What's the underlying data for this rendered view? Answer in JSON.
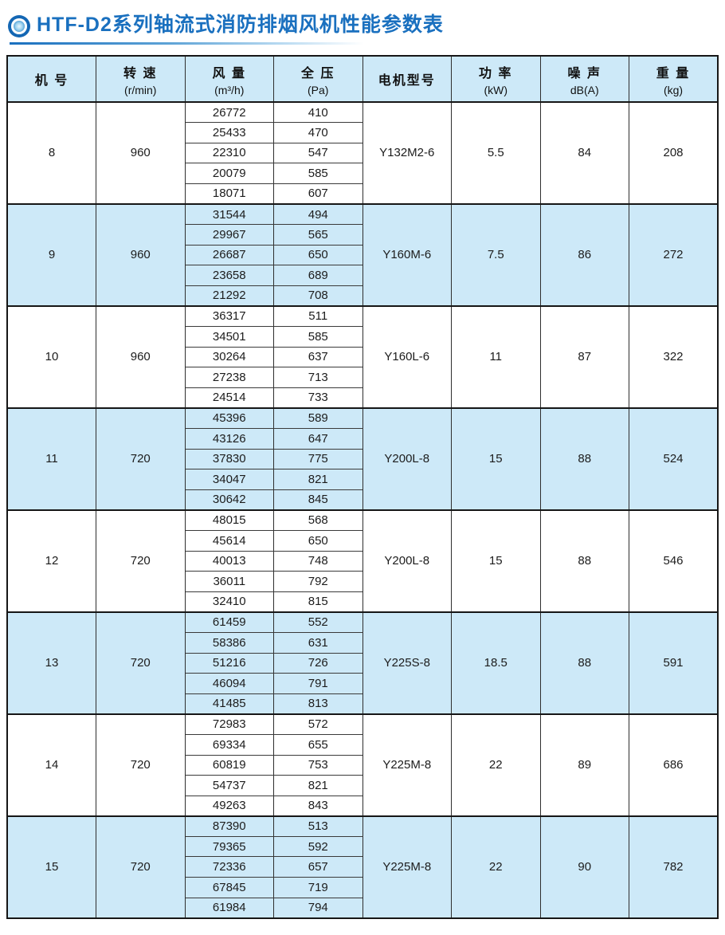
{
  "page": {
    "title": "HTF-D2系列轴流式消防排烟风机性能参数表"
  },
  "colors": {
    "accent": "#1a70bf",
    "row_shade": "#cde9f8",
    "border_dark": "#161616"
  },
  "table": {
    "columns": [
      {
        "label": "机 号",
        "unit": ""
      },
      {
        "label": "转 速",
        "unit": "(r/min)"
      },
      {
        "label": "风 量",
        "unit": "(m³/h)"
      },
      {
        "label": "全 压",
        "unit": "(Pa)"
      },
      {
        "label": "电机型号",
        "unit": ""
      },
      {
        "label": "功 率",
        "unit": "(kW)"
      },
      {
        "label": "噪 声",
        "unit": "dB(A)"
      },
      {
        "label": "重 量",
        "unit": "(kg)"
      }
    ],
    "groups": [
      {
        "model_no": "8",
        "speed": "960",
        "motor": "Y132M2-6",
        "power": "5.5",
        "noise": "84",
        "weight": "208",
        "shaded": false,
        "points": [
          [
            26772,
            410
          ],
          [
            25433,
            470
          ],
          [
            22310,
            547
          ],
          [
            20079,
            585
          ],
          [
            18071,
            607
          ]
        ]
      },
      {
        "model_no": "9",
        "speed": "960",
        "motor": "Y160M-6",
        "power": "7.5",
        "noise": "86",
        "weight": "272",
        "shaded": true,
        "points": [
          [
            31544,
            494
          ],
          [
            29967,
            565
          ],
          [
            26687,
            650
          ],
          [
            23658,
            689
          ],
          [
            21292,
            708
          ]
        ]
      },
      {
        "model_no": "10",
        "speed": "960",
        "motor": "Y160L-6",
        "power": "11",
        "noise": "87",
        "weight": "322",
        "shaded": false,
        "points": [
          [
            36317,
            511
          ],
          [
            34501,
            585
          ],
          [
            30264,
            637
          ],
          [
            27238,
            713
          ],
          [
            24514,
            733
          ]
        ]
      },
      {
        "model_no": "11",
        "speed": "720",
        "motor": "Y200L-8",
        "power": "15",
        "noise": "88",
        "weight": "524",
        "shaded": true,
        "points": [
          [
            45396,
            589
          ],
          [
            43126,
            647
          ],
          [
            37830,
            775
          ],
          [
            34047,
            821
          ],
          [
            30642,
            845
          ]
        ]
      },
      {
        "model_no": "12",
        "speed": "720",
        "motor": "Y200L-8",
        "power": "15",
        "noise": "88",
        "weight": "546",
        "shaded": false,
        "points": [
          [
            48015,
            568
          ],
          [
            45614,
            650
          ],
          [
            40013,
            748
          ],
          [
            36011,
            792
          ],
          [
            32410,
            815
          ]
        ]
      },
      {
        "model_no": "13",
        "speed": "720",
        "motor": "Y225S-8",
        "power": "18.5",
        "noise": "88",
        "weight": "591",
        "shaded": true,
        "points": [
          [
            61459,
            552
          ],
          [
            58386,
            631
          ],
          [
            51216,
            726
          ],
          [
            46094,
            791
          ],
          [
            41485,
            813
          ]
        ]
      },
      {
        "model_no": "14",
        "speed": "720",
        "motor": "Y225M-8",
        "power": "22",
        "noise": "89",
        "weight": "686",
        "shaded": false,
        "points": [
          [
            72983,
            572
          ],
          [
            69334,
            655
          ],
          [
            60819,
            753
          ],
          [
            54737,
            821
          ],
          [
            49263,
            843
          ]
        ]
      },
      {
        "model_no": "15",
        "speed": "720",
        "motor": "Y225M-8",
        "power": "22",
        "noise": "90",
        "weight": "782",
        "shaded": true,
        "points": [
          [
            87390,
            513
          ],
          [
            79365,
            592
          ],
          [
            72336,
            657
          ],
          [
            67845,
            719
          ],
          [
            61984,
            794
          ]
        ]
      }
    ]
  }
}
